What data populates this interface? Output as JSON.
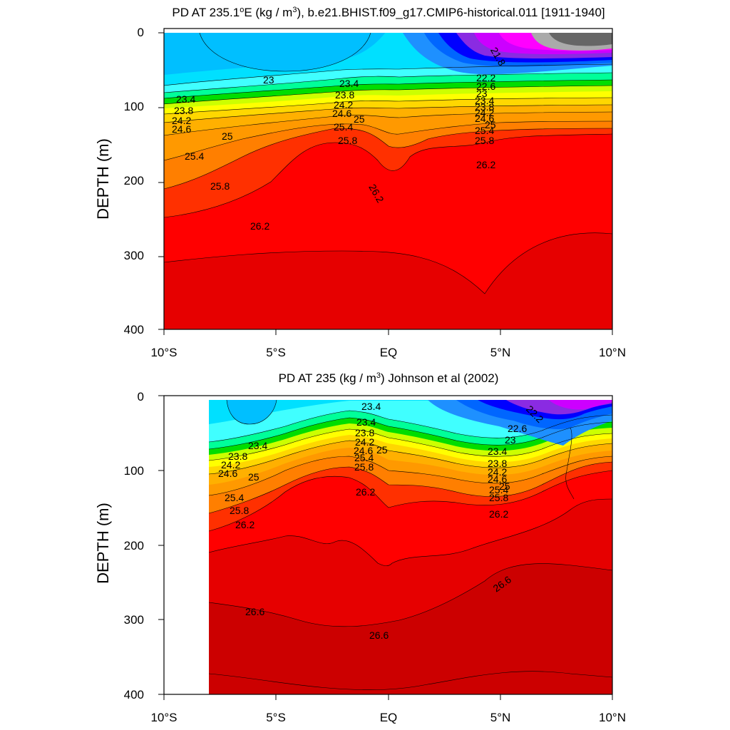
{
  "chart_data": [
    {
      "type": "contour",
      "title_main": "PD AT 235.1",
      "title_sup1": "o",
      "title_mid": "E (kg / m",
      "title_sup2": "3",
      "title_rest": "), b.e21.BHIST.f09_g17.CMIP6-historical.011 [1911-1940]",
      "ylabel": "DEPTH (m)",
      "x_tick_labels": [
        "10°S",
        "5°S",
        "EQ",
        "5°N",
        "10°N"
      ],
      "x_ticks": [
        -10,
        -5,
        0,
        5,
        10
      ],
      "y_tick_labels": [
        "0",
        "100",
        "200",
        "300",
        "400"
      ],
      "y_ticks": [
        0,
        100,
        200,
        300,
        400
      ],
      "xlim": [
        -10,
        10
      ],
      "ylim": [
        0,
        400
      ],
      "y_reversed": true,
      "data_lat_range": [
        -10,
        10
      ],
      "levels": [
        21.8,
        22.2,
        22.6,
        23,
        23.4,
        23.8,
        24.2,
        24.6,
        25,
        25.4,
        25.8,
        26.2,
        26.6
      ],
      "fill_colors": [
        "#666666",
        "#aaaaaa",
        "#ff00ff",
        "#cc00ff",
        "#8a2be2",
        "#0000ff",
        "#0066ff",
        "#1e90ff",
        "#00bfff",
        "#00e0ff",
        "#40ffff",
        "#00ff99",
        "#00dd00",
        "#ccff00",
        "#ffff00",
        "#ffd700",
        "#ffb000",
        "#ff9900",
        "#ff7f00",
        "#ff5a00",
        "#ff3000",
        "#ff0000",
        "#e60000"
      ],
      "contour_labels": [
        "23",
        "23.4",
        "23.8",
        "24.2",
        "24.6",
        "25",
        "25.4",
        "25.8",
        "26.2",
        "23.4",
        "23.8",
        "24.2",
        "24.6",
        "25",
        "25.4",
        "25.8",
        "26.2",
        "21.8",
        "22.2",
        "22.6",
        "23",
        "23.4",
        "23.8",
        "24.2",
        "24.6",
        "25",
        "25.4",
        "25.8",
        "26.2"
      ]
    },
    {
      "type": "contour",
      "title_main": "PD AT 235 (kg / m",
      "title_sup": "3",
      "title_rest": ") Johnson et al (2002)",
      "ylabel": "DEPTH (m)",
      "x_tick_labels": [
        "10°S",
        "5°S",
        "EQ",
        "5°N",
        "10°N"
      ],
      "x_ticks": [
        -10,
        -5,
        0,
        5,
        10
      ],
      "y_tick_labels": [
        "0",
        "100",
        "200",
        "300",
        "400"
      ],
      "y_ticks": [
        0,
        100,
        200,
        300,
        400
      ],
      "xlim": [
        -10,
        10
      ],
      "ylim": [
        0,
        400
      ],
      "y_reversed": true,
      "data_lat_range": [
        -8,
        10
      ],
      "levels": [
        22.2,
        22.6,
        23,
        23.4,
        23.8,
        24.2,
        24.6,
        25,
        25.4,
        25.8,
        26.2,
        26.6
      ],
      "fill_colors": [
        "#cc00ff",
        "#8a2be2",
        "#0000ff",
        "#0066ff",
        "#1e90ff",
        "#00bfff",
        "#00e0ff",
        "#40ffff",
        "#00ff99",
        "#00dd00",
        "#ccff00",
        "#ffff00",
        "#ffd700",
        "#ffb000",
        "#ff9900",
        "#ff7f00",
        "#ff5a00",
        "#ff3000",
        "#ff0000",
        "#e60000",
        "#cc0000"
      ],
      "contour_labels": [
        "23.4",
        "23.4",
        "23.8",
        "24.2",
        "24.6",
        "25",
        "25.4",
        "25.8",
        "26.2",
        "23.4",
        "23.8",
        "24.2",
        "24.6",
        "25",
        "25.4",
        "25.8",
        "26.2",
        "22.2",
        "22.6",
        "23",
        "23.4",
        "23.8",
        "24.2",
        "24.6",
        "25",
        "25.4",
        "25.8",
        "26.2",
        "26.6",
        "26.6",
        "26.6"
      ]
    }
  ]
}
